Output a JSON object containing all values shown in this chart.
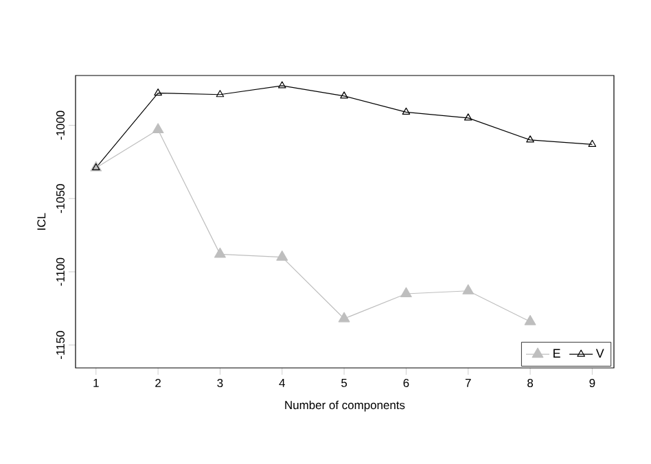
{
  "chart_data": {
    "type": "line",
    "xlabel": "Number of components",
    "ylabel": "ICL",
    "x": [
      1,
      2,
      3,
      4,
      5,
      6,
      7,
      8,
      9
    ],
    "series": [
      {
        "name": "E",
        "color": "#bebebe",
        "values": [
          -1029,
          -1003,
          -1088,
          -1090,
          -1132,
          -1115,
          -1113,
          -1134,
          null
        ]
      },
      {
        "name": "V",
        "color": "#000000",
        "values": [
          -1029,
          -978,
          -979,
          -973,
          -980,
          -991,
          -995,
          -1010,
          -1013
        ]
      }
    ],
    "xlim": [
      0.67,
      9.35
    ],
    "ylim": [
      -1165.6,
      -966
    ],
    "xticks": [
      1,
      2,
      3,
      4,
      5,
      6,
      7,
      8,
      9
    ],
    "yticks": [
      -1150,
      -1100,
      -1050,
      -1000
    ],
    "marker": "triangle",
    "legend": "bottom right",
    "grid": false
  }
}
